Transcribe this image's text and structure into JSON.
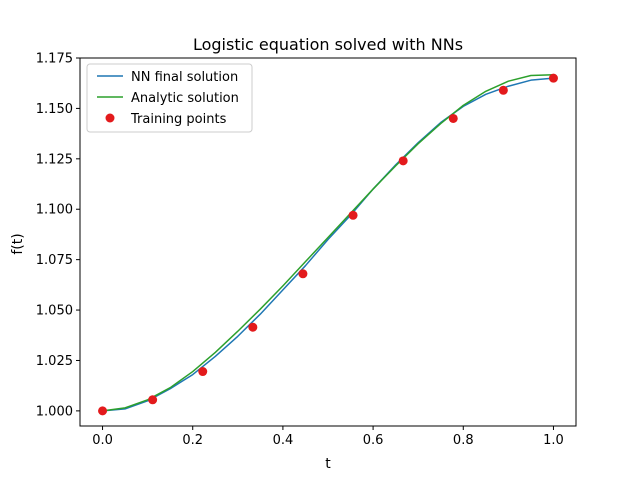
{
  "chart_data": {
    "type": "line",
    "title": "Logistic equation solved with NNs",
    "xlabel": "t",
    "ylabel": "f(t)",
    "xlim": [
      -0.05,
      1.05
    ],
    "ylim": [
      0.9925,
      1.175
    ],
    "xticks": [
      0.0,
      0.2,
      0.4,
      0.6,
      0.8,
      1.0
    ],
    "xtick_labels": [
      "0.0",
      "0.2",
      "0.4",
      "0.6",
      "0.8",
      "1.0"
    ],
    "yticks": [
      1.0,
      1.025,
      1.05,
      1.075,
      1.1,
      1.125,
      1.15,
      1.175
    ],
    "ytick_labels": [
      "1.000",
      "1.025",
      "1.050",
      "1.075",
      "1.100",
      "1.125",
      "1.150",
      "1.175"
    ],
    "grid": false,
    "legend_position": "top-left",
    "series": [
      {
        "name": "NN final solution",
        "kind": "line",
        "color": "#1f77b4",
        "x": [
          0.0,
          0.05,
          0.1,
          0.15,
          0.2,
          0.25,
          0.3,
          0.35,
          0.4,
          0.45,
          0.5,
          0.55,
          0.6,
          0.65,
          0.7,
          0.75,
          0.8,
          0.85,
          0.9,
          0.95,
          1.0
        ],
        "y": [
          1.0,
          1.001,
          1.005,
          1.011,
          1.018,
          1.027,
          1.037,
          1.048,
          1.06,
          1.072,
          1.085,
          1.097,
          1.11,
          1.122,
          1.133,
          1.143,
          1.151,
          1.157,
          1.161,
          1.164,
          1.165
        ]
      },
      {
        "name": "Analytic solution",
        "kind": "line",
        "color": "#2ca02c",
        "x": [
          0.0,
          0.05,
          0.1,
          0.15,
          0.2,
          0.25,
          0.3,
          0.35,
          0.4,
          0.45,
          0.5,
          0.55,
          0.6,
          0.65,
          0.7,
          0.75,
          0.8,
          0.85,
          0.9,
          0.95,
          1.0
        ],
        "y": [
          1.0,
          1.0015,
          1.0055,
          1.0115,
          1.0195,
          1.029,
          1.0395,
          1.0505,
          1.062,
          1.074,
          1.086,
          1.098,
          1.11,
          1.1215,
          1.1325,
          1.1425,
          1.1515,
          1.1585,
          1.1635,
          1.1663,
          1.1667
        ]
      },
      {
        "name": "Training points",
        "kind": "scatter",
        "color": "#e31a1c",
        "x": [
          0.0,
          0.1111,
          0.2222,
          0.3333,
          0.4444,
          0.5556,
          0.6667,
          0.7778,
          0.8889,
          1.0
        ],
        "y": [
          1.0,
          1.0055,
          1.0195,
          1.0415,
          1.068,
          1.097,
          1.124,
          1.145,
          1.159,
          1.165
        ]
      }
    ]
  }
}
